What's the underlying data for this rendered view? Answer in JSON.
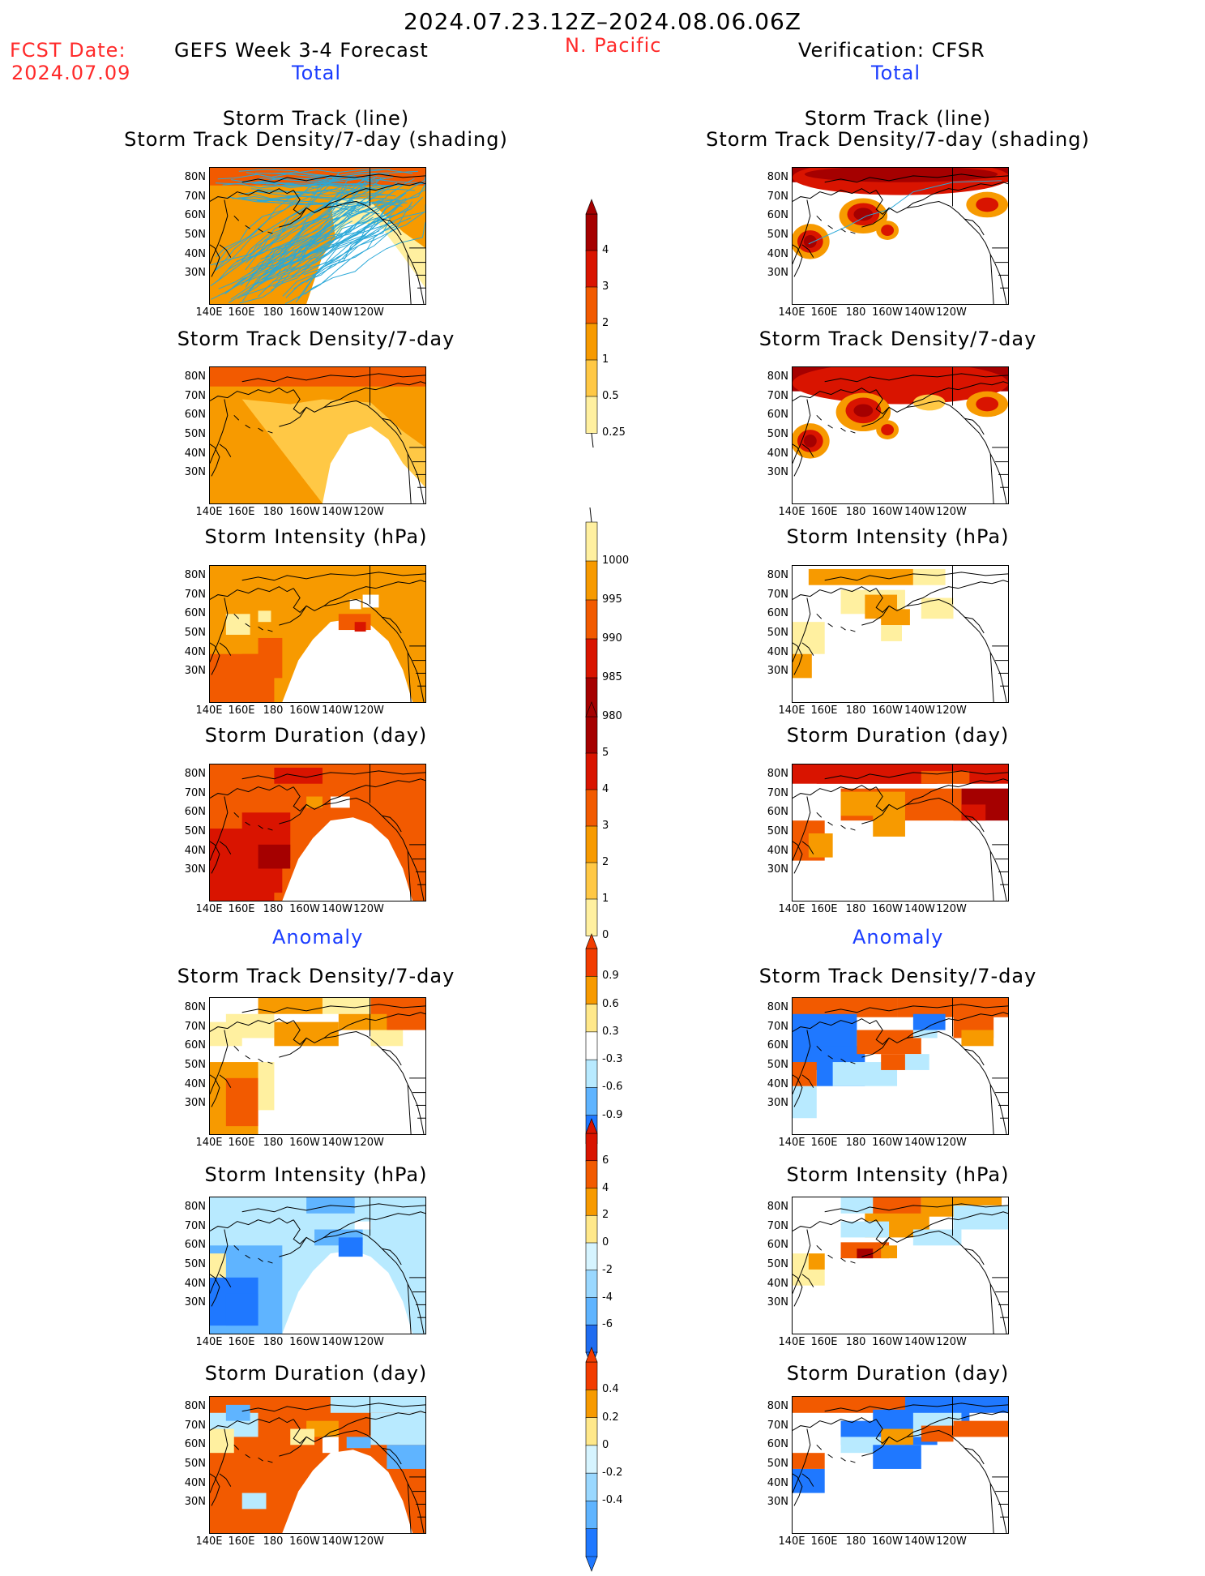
{
  "header": {
    "date_range": "2024.07.23.12Z–2024.08.06.06Z",
    "fcst_date_label": "FCST Date:",
    "fcst_date_value": "2024.07.09",
    "forecast_title": "GEFS Week 3-4 Forecast",
    "region": "N. Pacific",
    "verification_title": "Verification: CFSR",
    "total_left": "Total",
    "total_right": "Total",
    "anomaly_left": "Anomaly",
    "anomaly_right": "Anomaly"
  },
  "panel_titles": {
    "track_line": "Storm Track (line)",
    "track_shading": "Storm Track Density/7-day (shading)",
    "density": "Storm Track Density/7-day",
    "intensity": "Storm Intensity (hPa)",
    "duration": "Storm Duration (day)"
  },
  "axes": {
    "lat_labels": [
      "80N",
      "70N",
      "60N",
      "50N",
      "40N",
      "30N"
    ],
    "lon_labels": [
      "140E",
      "160E",
      "180",
      "160W",
      "140W",
      "120W"
    ]
  },
  "colorbars": {
    "density": {
      "labels": [
        "4",
        "3",
        "2",
        "1",
        "0.5",
        "0.25"
      ],
      "colors": [
        "#a50000",
        "#d91400",
        "#f25a00",
        "#f79a00",
        "#ffc845",
        "#fff0a0"
      ]
    },
    "intensity": {
      "labels": [
        "1000",
        "995",
        "990",
        "985",
        "980"
      ],
      "colors": [
        "#fff0a0",
        "#f79a00",
        "#f25a00",
        "#d91400",
        "#a50000"
      ]
    },
    "duration": {
      "labels": [
        "5",
        "4",
        "3",
        "2",
        "1",
        "0"
      ],
      "colors": [
        "#a50000",
        "#d91400",
        "#f25a00",
        "#f79a00",
        "#ffc845",
        "#fff0a0"
      ]
    },
    "anom_density": {
      "labels": [
        "0.9",
        "0.6",
        "0.3",
        "-0.3",
        "-0.6",
        "-0.9"
      ],
      "colors": [
        "#f23c00",
        "#f79a00",
        "#ffe88a",
        "#ffffff",
        "#b8eaff",
        "#5fb4ff",
        "#1f78ff"
      ]
    },
    "anom_intensity": {
      "labels": [
        "6",
        "4",
        "2",
        "0",
        "-2",
        "-4",
        "-6"
      ],
      "colors": [
        "#d91400",
        "#f25a00",
        "#f79a00",
        "#ffe88a",
        "#d6f4ff",
        "#9ad8ff",
        "#5fb4ff",
        "#1f6cf0"
      ]
    },
    "anom_duration": {
      "labels": [
        "0.4",
        "0.2",
        "0",
        "-0.2",
        "-0.4"
      ],
      "colors": [
        "#f23c00",
        "#f79a00",
        "#ffe88a",
        "#d6f4ff",
        "#9ad8ff",
        "#5fb4ff",
        "#1f78ff"
      ]
    }
  },
  "palette": {
    "light_yellow": "#fff0a0",
    "yellow": "#ffc845",
    "orange": "#f79a00",
    "dark_orange": "#f25a00",
    "red": "#d91400",
    "dark_red": "#a50000",
    "light_blue": "#b8eaff",
    "mid_blue": "#5fb4ff",
    "blue": "#1f78ff",
    "track_line": "#2aa8d8"
  }
}
